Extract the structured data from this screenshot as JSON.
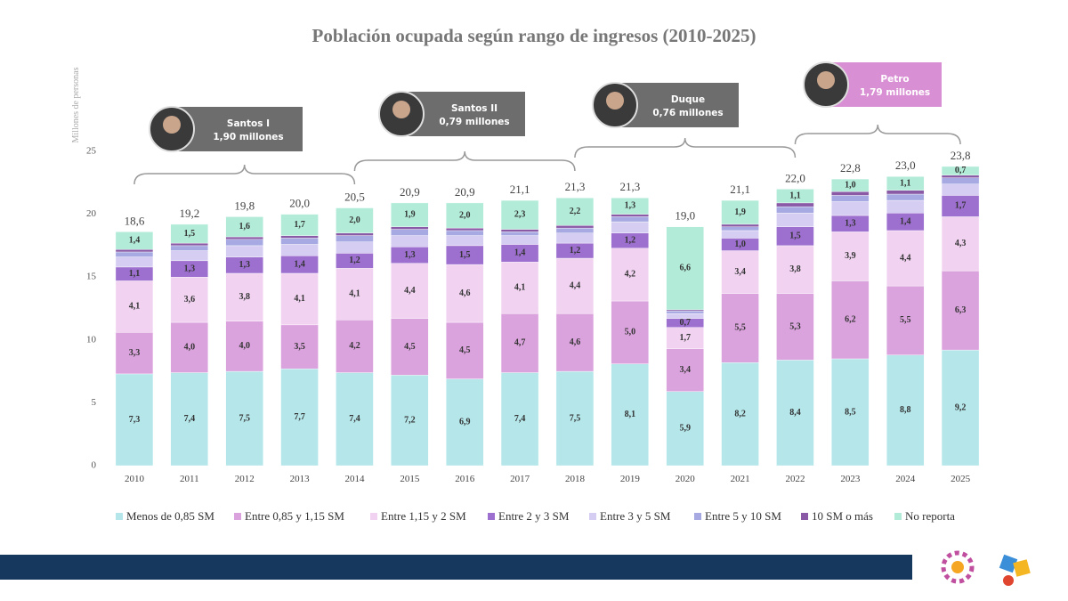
{
  "chart_data": {
    "type": "stacked_bar",
    "title": "Población ocupada según rango de ingresos (2010-2025)",
    "y_label": "Millones de personas",
    "categories": [
      "2010",
      "2011",
      "2012",
      "2013",
      "2014",
      "2015",
      "2016",
      "2017",
      "2018",
      "2019",
      "2020",
      "2021",
      "2022",
      "2023",
      "2024",
      "2025"
    ],
    "ylim": [
      0,
      25
    ],
    "yticks": [
      0,
      5,
      10,
      15,
      20,
      25
    ],
    "series": [
      {
        "name": "Menos de 0,85 SM",
        "color": "#b4e6ea",
        "values": [
          7.3,
          7.4,
          7.5,
          7.7,
          7.4,
          7.2,
          6.9,
          7.4,
          7.5,
          8.1,
          5.9,
          8.2,
          8.4,
          8.5,
          8.8,
          9.2
        ],
        "value_labels": [
          "7,3",
          "7,4",
          "7,5",
          "7,7",
          "7,4",
          "7,2",
          "6,9",
          "7,4",
          "7,5",
          "8,1",
          "5,9",
          "8,2",
          "8,4",
          "8,5",
          "8,8",
          "9,2"
        ]
      },
      {
        "name": "Entre 0,85 y 1,15 SM",
        "color": "#dba3dd",
        "values": [
          3.3,
          4.0,
          4.0,
          3.5,
          4.2,
          4.5,
          4.5,
          4.7,
          4.6,
          5.0,
          3.4,
          5.5,
          5.3,
          6.2,
          5.5,
          6.3
        ],
        "value_labels": [
          "3,3",
          "4,0",
          "4,0",
          "3,5",
          "4,2",
          "4,5",
          "4,5",
          "4,7",
          "4,6",
          "5,0",
          "3,4",
          "5,5",
          "5,3",
          "6,2",
          "5,5",
          "6,3"
        ]
      },
      {
        "name": "Entre 1,15 y 2 SM",
        "color": "#f1d3f1",
        "values": [
          4.1,
          3.6,
          3.8,
          4.1,
          4.1,
          4.4,
          4.6,
          4.1,
          4.4,
          4.2,
          1.7,
          3.4,
          3.8,
          3.9,
          4.4,
          4.3
        ],
        "value_labels": [
          "4,1",
          "3,6",
          "3,8",
          "4,1",
          "4,1",
          "4,4",
          "4,6",
          "4,1",
          "4,4",
          "4,2",
          "1,7",
          "3,4",
          "3,8",
          "3,9",
          "4,4",
          "4,3"
        ]
      },
      {
        "name": "Entre 2 y 3 SM",
        "color": "#9d6fcf",
        "values": [
          1.1,
          1.3,
          1.3,
          1.4,
          1.2,
          1.3,
          1.5,
          1.4,
          1.2,
          1.2,
          0.7,
          1.0,
          1.5,
          1.3,
          1.4,
          1.7
        ],
        "value_labels": [
          "1,1",
          "1,3",
          "1,3",
          "1,4",
          "1,2",
          "1,3",
          "1,5",
          "1,4",
          "1,2",
          "1,2",
          "0,7",
          "1,0",
          "1,5",
          "1,3",
          "1,4",
          "1,7"
        ]
      },
      {
        "name": "Entre 3 y 5 SM",
        "color": "#d6cdf2",
        "values": [
          0.8,
          0.8,
          0.9,
          0.9,
          0.9,
          0.9,
          0.8,
          0.7,
          0.8,
          0.9,
          0.4,
          0.6,
          1.1,
          1.1,
          1.0,
          0.9
        ]
      },
      {
        "name": "Entre 5 y 10 SM",
        "color": "#a7a9e2",
        "values": [
          0.4,
          0.4,
          0.5,
          0.5,
          0.5,
          0.5,
          0.4,
          0.3,
          0.4,
          0.4,
          0.2,
          0.3,
          0.5,
          0.5,
          0.5,
          0.5
        ]
      },
      {
        "name": "10 SM o más",
        "color": "#8a5aa6",
        "values": [
          0.2,
          0.2,
          0.2,
          0.2,
          0.2,
          0.2,
          0.2,
          0.2,
          0.2,
          0.2,
          0.1,
          0.2,
          0.3,
          0.3,
          0.3,
          0.2
        ]
      },
      {
        "name": "No reporta",
        "color": "#b2ecd8",
        "values": [
          1.4,
          1.5,
          1.6,
          1.7,
          2.0,
          1.9,
          2.0,
          2.3,
          2.2,
          1.3,
          6.6,
          1.9,
          1.1,
          1.0,
          1.1,
          0.7
        ],
        "value_labels": [
          "1,4",
          "1,5",
          "1,6",
          "1,7",
          "2,0",
          "1,9",
          "2,0",
          "2,3",
          "2,2",
          "1,3",
          "6,6",
          "1,9",
          "1,1",
          "1,0",
          "1,1",
          "0,7"
        ]
      }
    ],
    "total_labels": [
      "18,6",
      "19,2",
      "19,8",
      "20,0",
      "20,5",
      "20,9",
      "20,9",
      "21,1",
      "21,3",
      "21,3",
      "19,0",
      "21,1",
      "22,0",
      "22,8",
      "23,0",
      "23,8"
    ],
    "annotations": [
      {
        "title": "Santos I",
        "text": "1,90 millones"
      },
      {
        "title": "Santos II",
        "text": "0,79 millones"
      },
      {
        "title": "Duque",
        "text": "0,76 millones"
      },
      {
        "title": "Petro",
        "text": "1,79 millones"
      }
    ]
  }
}
